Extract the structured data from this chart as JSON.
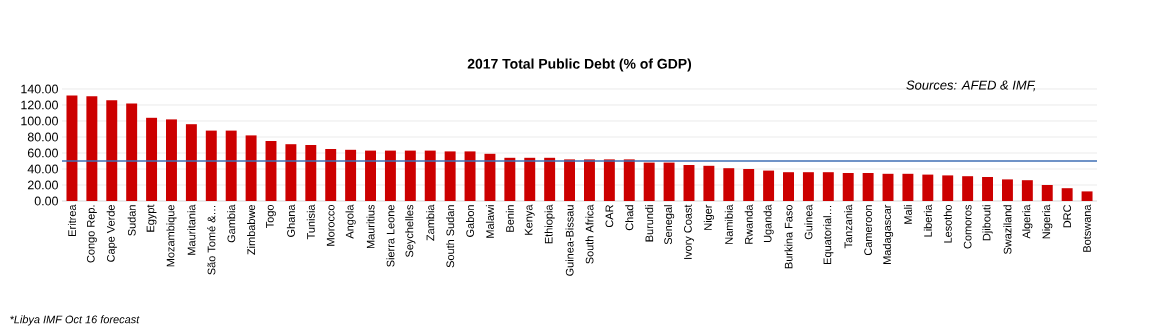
{
  "chart_data": {
    "type": "bar",
    "title": "2017 Total Public Debt (% of GDP)",
    "categories": [
      "Eritrea",
      "Congo Rep.",
      "Cape Verde",
      "Sudan",
      "Egypt",
      "Mozambique",
      "Mauritania",
      "São Tomé &…",
      "Gambia",
      "Zimbabwe",
      "Togo",
      "Ghana",
      "Tunisia",
      "Morocco",
      "Angola",
      "Mauritius",
      "Sierra Leone",
      "Seychelles",
      "Zambia",
      "South Sudan",
      "Gabon",
      "Malawi",
      "Benin",
      "Kenya",
      "Ethiopia",
      "Guinea-Bissau",
      "South Africa",
      "CAR",
      "Chad",
      "Burundi",
      "Senegal",
      "Ivory Coast",
      "Niger",
      "Namibia",
      "Rwanda",
      "Uganda",
      "Burkina Faso",
      "Guinea",
      "Equatorial…",
      "Tanzania",
      "Cameroon",
      "Madagascar",
      "Mali",
      "Liberia",
      "Lesotho",
      "Comoros",
      "Djibouti",
      "Swaziland",
      "Algeria",
      "Nigeria",
      "DRC",
      "Botswana"
    ],
    "values": [
      132,
      131,
      126,
      122,
      104,
      102,
      96,
      88,
      88,
      82,
      75,
      71,
      70,
      65,
      64,
      63,
      63,
      63,
      63,
      62,
      62,
      59,
      54,
      54,
      54,
      52,
      52,
      52,
      52,
      48,
      48,
      45,
      44,
      41,
      40,
      38,
      36,
      36,
      36,
      35,
      35,
      34,
      34,
      33,
      32,
      31,
      30,
      27,
      26,
      20,
      16,
      12
    ],
    "color": "#cc0000",
    "ylim": [
      0,
      140
    ],
    "yticks": [
      {
        "value": 0,
        "label": "0.00"
      },
      {
        "value": 20,
        "label": "20.00"
      },
      {
        "value": 40,
        "label": "40.00"
      },
      {
        "value": 60,
        "label": "60.00"
      },
      {
        "value": 80,
        "label": "80.00"
      },
      {
        "value": 100,
        "label": "100.00"
      },
      {
        "value": 120,
        "label": "120.00"
      },
      {
        "value": 140,
        "label": "140.00"
      }
    ],
    "grid": "y",
    "ref_lines": [
      {
        "axis": "y",
        "value": 50,
        "color": "#3f6fb5"
      }
    ],
    "annotations": [
      "Sources: AFED & IMF,",
      "*Libya IMF Oct 16 forecast"
    ]
  }
}
